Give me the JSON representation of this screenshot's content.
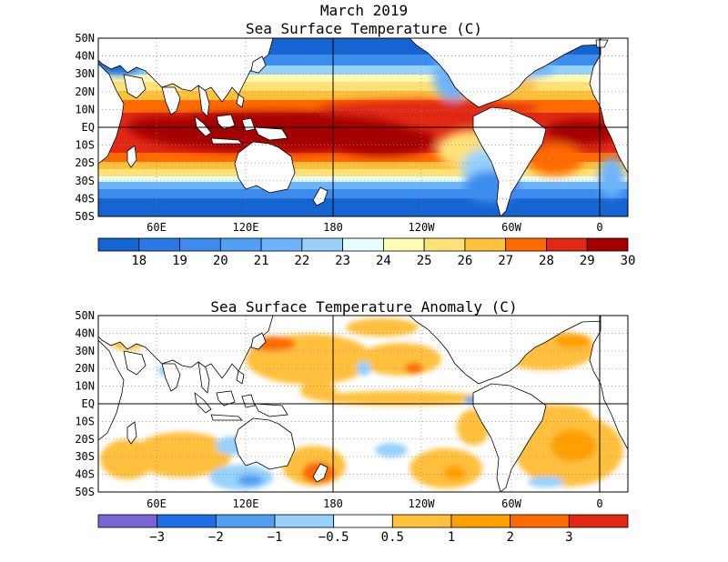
{
  "title_line1": "March 2019",
  "title_line2": "Sea Surface Temperature (C)",
  "maps": {
    "sst": {
      "subtitle": "",
      "lat_labels": [
        "50N",
        "40N",
        "30N",
        "20N",
        "10N",
        "EQ",
        "10S",
        "20S",
        "30S",
        "40S",
        "50S"
      ],
      "lon_labels": [
        "60E",
        "120E",
        "180",
        "120W",
        "60W",
        "0"
      ],
      "colorbar": {
        "tick_labels": [
          "18",
          "19",
          "20",
          "21",
          "22",
          "23",
          "24",
          "25",
          "26",
          "27",
          "28",
          "29",
          "30"
        ],
        "colors": [
          "#1464d2",
          "#2a78e6",
          "#3c8cf0",
          "#50a0f5",
          "#6eb4fa",
          "#96d2fa",
          "#e6ffff",
          "#fffab4",
          "#ffe178",
          "#ffc03c",
          "#ff6a00",
          "#e12814",
          "#a50000"
        ]
      }
    },
    "anomaly": {
      "subtitle": "Sea Surface Temperature Anomaly (C)",
      "lat_labels": [
        "50N",
        "40N",
        "30N",
        "20N",
        "10N",
        "EQ",
        "10S",
        "20S",
        "30S",
        "40S",
        "50S"
      ],
      "lon_labels": [
        "60E",
        "120E",
        "180",
        "120W",
        "60W",
        "0"
      ],
      "colorbar": {
        "tick_labels": [
          "−3",
          "−2",
          "−1",
          "−0.5",
          "0.5",
          "1",
          "2",
          "3"
        ],
        "colors": [
          "#7864d2",
          "#1e6ee6",
          "#50a0f0",
          "#96d2fa",
          "#ffffff",
          "#ffc03c",
          "#ffa000",
          "#ff6a00",
          "#e12814"
        ]
      }
    }
  }
}
